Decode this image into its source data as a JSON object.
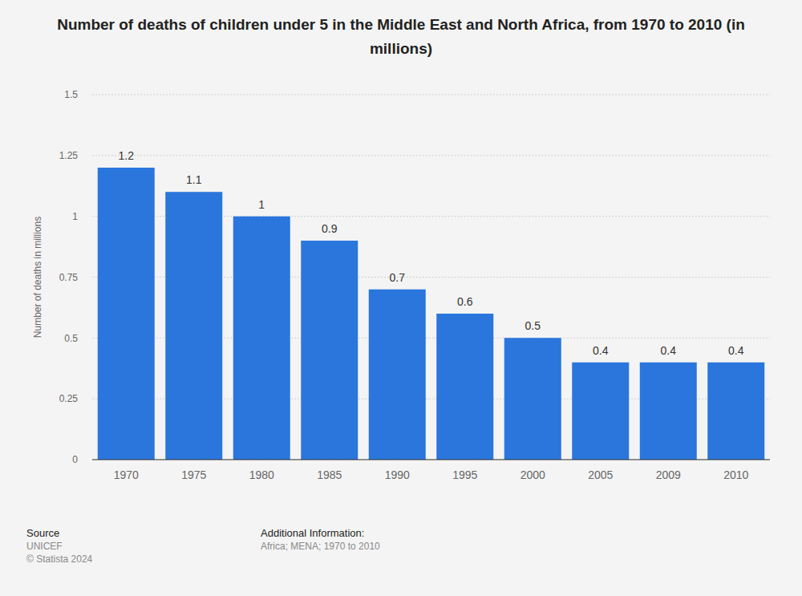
{
  "chart_data": {
    "type": "bar",
    "title": "Number of deaths of children under 5 in the Middle East and North Africa, from 1970 to 2010 (in millions)",
    "y_label": "Number of deaths in millions",
    "categories": [
      "1970",
      "1975",
      "1980",
      "1985",
      "1990",
      "1995",
      "2000",
      "2005",
      "2009",
      "2010"
    ],
    "values": [
      1.2,
      1.1,
      1,
      0.9,
      0.7,
      0.6,
      0.5,
      0.4,
      0.4,
      0.4
    ],
    "color": "#2a76dd",
    "ylim": [
      0,
      1.5
    ],
    "yticks": [
      0,
      0.25,
      0.5,
      0.75,
      1,
      1.25,
      1.5
    ],
    "grid": true,
    "data_labels": true,
    "annotations": [
      "Source",
      "UNICEF",
      "© Statista 2024",
      "Additional Information:",
      "Africa; MENA; 1970 to 2010"
    ]
  }
}
